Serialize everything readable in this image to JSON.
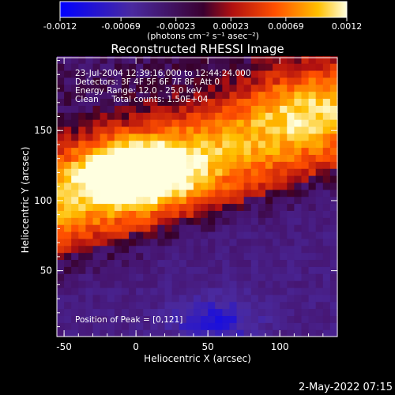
{
  "chart_data": {
    "type": "heatmap",
    "title": "Reconstructed RHESSI Image",
    "xlabel": "Heliocentric X (arcsec)",
    "ylabel": "Heliocentric Y (arcsec)",
    "xlim": [
      -55,
      140
    ],
    "ylim": [
      3,
      202
    ],
    "x_ticks": [
      -50,
      0,
      50,
      100
    ],
    "y_ticks": [
      50,
      100,
      150
    ],
    "colorbar": {
      "range": [
        -0.0012,
        0.0012
      ],
      "ticks": [
        "-0.0012",
        "-0.00069",
        "-0.00023",
        "0.00023",
        "0.00069",
        "0.0012"
      ],
      "units_label": "(photons cm⁻² s⁻¹ asec⁻²)"
    },
    "annotations": [
      "23-Jul-2004 12:39:16.000 to 12:44:24.000",
      "Detectors: 3F 4F 5F 6F 7F 8F, Att 0",
      "Energy Range: 12.0 - 25.0 keV",
      "Clean     Total counts: 1.50E+04"
    ],
    "peak_label": "Position of Peak = [0,121]",
    "peak": {
      "x": 0,
      "y": 121,
      "value": 0.0012
    },
    "grid": false
  },
  "footer": {
    "timestamp": "2-May-2022 07:15"
  }
}
